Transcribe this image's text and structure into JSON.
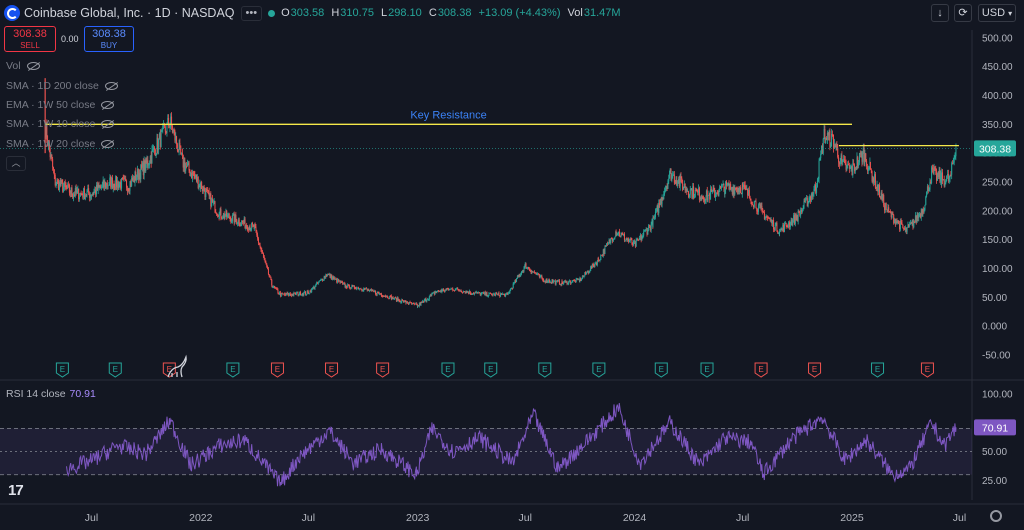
{
  "header": {
    "symbol_title": "Coinbase Global, Inc. · 1D · NASDAQ",
    "more_label": "•••",
    "ohlc": {
      "o_label": "O",
      "o": "303.58",
      "h_label": "H",
      "h": "310.75",
      "l_label": "L",
      "l": "298.10",
      "c_label": "C",
      "c": "308.38",
      "change": "+13.09 (+4.43%)",
      "vol_label": "Vol",
      "vol": "31.47M"
    },
    "currency": "USD",
    "download_icon": "arrow-down-icon",
    "reload_icon": "reload-icon"
  },
  "trade": {
    "sell_price": "308.38",
    "sell_label": "SELL",
    "spread": "0.00",
    "buy_price": "308.38",
    "buy_label": "BUY"
  },
  "indicators": [
    {
      "label": "Vol"
    },
    {
      "label": "SMA · 1D 200 close"
    },
    {
      "label": "EMA · 1W 50 close"
    },
    {
      "label": "SMA · 1W 10 close"
    },
    {
      "label": "SMA · 1W 20 close"
    }
  ],
  "rsi": {
    "label": "RSI 14 close",
    "value": "70.91"
  },
  "colors": {
    "bg": "#131722",
    "up": "#26a69a",
    "down": "#ef5350",
    "resistance": "#f5e94a",
    "rsi": "#7e57c2",
    "price_tag": "#26a69a",
    "earnings_up": "#26a69a",
    "earnings_down": "#ef5350"
  },
  "chart_data": [
    {
      "type": "candlestick",
      "title": "Coinbase Global, Inc. · 1D · NASDAQ",
      "y_ticks": [
        "500.00",
        "450.00",
        "400.00",
        "350.00",
        "300.00",
        "250.00",
        "200.00",
        "150.00",
        "100.00",
        "50.00",
        "0.000",
        "-50.00"
      ],
      "ylim": [
        -62,
        510
      ],
      "x_ticks": [
        "Jul",
        "2022",
        "Jul",
        "2023",
        "Jul",
        "2024",
        "Jul",
        "2025",
        "Jul"
      ],
      "x_tick_dates": [
        "2021-07",
        "2022-01",
        "2022-07",
        "2023-01",
        "2023-07",
        "2024-01",
        "2024-07",
        "2025-01",
        "2025-07"
      ],
      "last_price": "308.38",
      "price_path": [
        [
          "2021-04-14",
          345,
          430,
          300
        ],
        [
          "2021-05-01",
          250
        ],
        [
          "2021-06-01",
          230
        ],
        [
          "2021-07-01",
          230
        ],
        [
          "2021-08-01",
          250
        ],
        [
          "2021-09-01",
          245
        ],
        [
          "2021-10-01",
          280
        ],
        [
          "2021-11-10",
          355
        ],
        [
          "2021-12-01",
          285
        ],
        [
          "2022-01-01",
          245
        ],
        [
          "2022-02-01",
          195
        ],
        [
          "2022-03-01",
          185
        ],
        [
          "2022-04-01",
          170
        ],
        [
          "2022-05-01",
          70
        ],
        [
          "2022-05-15",
          55
        ],
        [
          "2022-06-01",
          55
        ],
        [
          "2022-07-01",
          58
        ],
        [
          "2022-08-01",
          90
        ],
        [
          "2022-09-01",
          70
        ],
        [
          "2022-10-01",
          65
        ],
        [
          "2022-11-01",
          55
        ],
        [
          "2022-12-01",
          45
        ],
        [
          "2023-01-01",
          35
        ],
        [
          "2023-02-01",
          60
        ],
        [
          "2023-03-01",
          65
        ],
        [
          "2023-04-01",
          58
        ],
        [
          "2023-05-01",
          55
        ],
        [
          "2023-06-01",
          55
        ],
        [
          "2023-07-01",
          105
        ],
        [
          "2023-08-01",
          80
        ],
        [
          "2023-09-01",
          75
        ],
        [
          "2023-10-01",
          80
        ],
        [
          "2023-11-01",
          115
        ],
        [
          "2023-12-01",
          165
        ],
        [
          "2024-01-01",
          140
        ],
        [
          "2024-02-01",
          180
        ],
        [
          "2024-03-01",
          265
        ],
        [
          "2024-04-01",
          235
        ],
        [
          "2024-05-01",
          225
        ],
        [
          "2024-06-01",
          240
        ],
        [
          "2024-07-01",
          240
        ],
        [
          "2024-08-01",
          200
        ],
        [
          "2024-09-01",
          165
        ],
        [
          "2024-10-01",
          190
        ],
        [
          "2024-11-01",
          240
        ],
        [
          "2024-11-15",
          330
        ],
        [
          "2024-12-01",
          320
        ],
        [
          "2024-12-15",
          280
        ],
        [
          "2025-01-01",
          270
        ],
        [
          "2025-01-20",
          300
        ],
        [
          "2025-02-01",
          270
        ],
        [
          "2025-03-01",
          200
        ],
        [
          "2025-04-01",
          165
        ],
        [
          "2025-04-15",
          180
        ],
        [
          "2025-05-01",
          205
        ],
        [
          "2025-05-15",
          265
        ],
        [
          "2025-06-01",
          255
        ],
        [
          "2025-06-15",
          255
        ],
        [
          "2025-06-25",
          308.38
        ]
      ],
      "annotations": [
        {
          "type": "hline",
          "label": "Key Resistance",
          "y": 350,
          "x_start": "2021-04-14",
          "x_end": "2025-01-01"
        },
        {
          "type": "hline",
          "label": "",
          "y": 313,
          "x_start": "2024-12-10",
          "x_end": "2025-06-30"
        }
      ],
      "earnings": [
        {
          "d": "2021-05-13",
          "t": "up"
        },
        {
          "d": "2021-08-10",
          "t": "up"
        },
        {
          "d": "2021-11-09",
          "t": "down"
        },
        {
          "d": "2022-02-24",
          "t": "up"
        },
        {
          "d": "2022-05-10",
          "t": "down"
        },
        {
          "d": "2022-08-09",
          "t": "down"
        },
        {
          "d": "2022-11-03",
          "t": "down"
        },
        {
          "d": "2023-02-21",
          "t": "up"
        },
        {
          "d": "2023-05-04",
          "t": "up"
        },
        {
          "d": "2023-08-03",
          "t": "up"
        },
        {
          "d": "2023-11-02",
          "t": "up"
        },
        {
          "d": "2024-02-15",
          "t": "up"
        },
        {
          "d": "2024-05-02",
          "t": "up"
        },
        {
          "d": "2024-08-01",
          "t": "down"
        },
        {
          "d": "2024-10-30",
          "t": "down"
        },
        {
          "d": "2025-02-13",
          "t": "up"
        },
        {
          "d": "2025-05-08",
          "t": "down"
        }
      ],
      "earnings_label": "E"
    },
    {
      "type": "line",
      "title": "RSI 14 close",
      "y_ticks": [
        "100.00",
        "70.91",
        "50.00",
        "25.00"
      ],
      "ylim": [
        15,
        105
      ],
      "levels": [
        70,
        50,
        30
      ],
      "last_value": "70.91",
      "path": [
        [
          "2021-05-20",
          35
        ],
        [
          "2021-07-01",
          42
        ],
        [
          "2021-08-15",
          55
        ],
        [
          "2021-10-01",
          48
        ],
        [
          "2021-11-10",
          77
        ],
        [
          "2021-12-15",
          38
        ],
        [
          "2022-02-01",
          55
        ],
        [
          "2022-03-15",
          60
        ],
        [
          "2022-05-15",
          22
        ],
        [
          "2022-06-15",
          45
        ],
        [
          "2022-08-05",
          68
        ],
        [
          "2022-09-15",
          40
        ],
        [
          "2022-11-01",
          52
        ],
        [
          "2022-12-30",
          30
        ],
        [
          "2023-01-25",
          70
        ],
        [
          "2023-03-01",
          50
        ],
        [
          "2023-04-15",
          62
        ],
        [
          "2023-06-10",
          40
        ],
        [
          "2023-07-15",
          82
        ],
        [
          "2023-08-25",
          35
        ],
        [
          "2023-10-15",
          60
        ],
        [
          "2023-12-05",
          88
        ],
        [
          "2024-01-10",
          40
        ],
        [
          "2024-03-01",
          75
        ],
        [
          "2024-04-20",
          38
        ],
        [
          "2024-06-01",
          62
        ],
        [
          "2024-07-15",
          58
        ],
        [
          "2024-08-05",
          30
        ],
        [
          "2024-09-20",
          60
        ],
        [
          "2024-11-12",
          80
        ],
        [
          "2024-12-20",
          42
        ],
        [
          "2025-01-25",
          60
        ],
        [
          "2025-03-10",
          30
        ],
        [
          "2025-04-08",
          35
        ],
        [
          "2025-05-15",
          75
        ],
        [
          "2025-06-05",
          55
        ],
        [
          "2025-06-25",
          70.91
        ]
      ]
    }
  ]
}
